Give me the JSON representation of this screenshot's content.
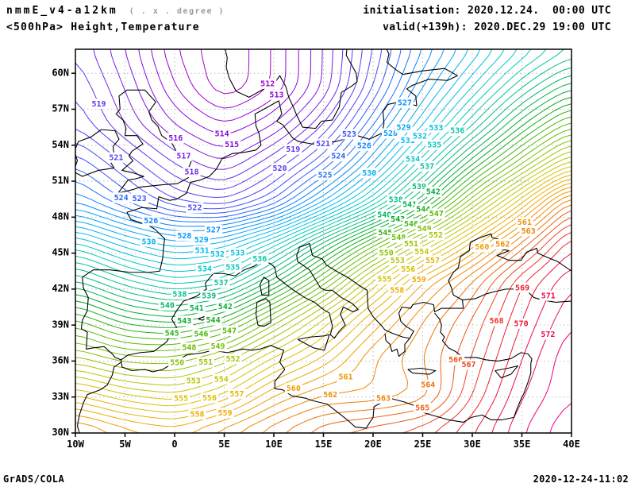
{
  "header": {
    "model": "nmmE_v4-a12km",
    "resolution_note": "( . x . degree )",
    "field_line": "<500hPa> Height,Temperature",
    "init_line": "initialisation: 2020.12.24.  00:00 UTC",
    "valid_line": "valid(+139h): 2020.DEC.29 19:00 UTC"
  },
  "footer": {
    "left": "GrADS/COLA",
    "right": "2020-12-24-11:02"
  },
  "chart_data": {
    "type": "heatmap",
    "subtype": "contour-isolines-over-map",
    "title": "<500hPa> Height,Temperature",
    "xlabel": "",
    "ylabel": "",
    "legend": "none",
    "grid_lines": "dotted",
    "lon_range": [
      -10,
      40
    ],
    "lat_range": [
      30,
      62
    ],
    "x_ticks": {
      "labels": [
        "10W",
        "5W",
        "0",
        "5E",
        "10E",
        "15E",
        "20E",
        "25E",
        "30E",
        "35E",
        "40E"
      ],
      "values": [
        -10,
        -5,
        0,
        5,
        10,
        15,
        20,
        25,
        30,
        35,
        40
      ]
    },
    "y_ticks": {
      "labels": [
        "30N",
        "33N",
        "36N",
        "39N",
        "42N",
        "45N",
        "48N",
        "51N",
        "54N",
        "57N",
        "60N"
      ],
      "values": [
        30,
        33,
        36,
        39,
        42,
        45,
        48,
        51,
        54,
        57,
        60
      ]
    },
    "contour_levels": {
      "min": 510,
      "max": 575,
      "interval": 1
    },
    "field_description": "500hPa geopotential height (dam): closed low ~510 over Norway/North Sea, ridge ~575 over SE corner (Middle East), weak cut-off low ~562 over Libya/Egypt",
    "grid": {
      "lats": [
        62,
        58.8,
        55.6,
        52.4,
        49.2,
        46,
        42.8,
        39.6,
        36.4,
        33.2,
        30
      ],
      "lons": [
        -10,
        -5,
        0,
        5,
        10,
        15,
        20,
        25,
        30,
        35,
        40
      ],
      "values": [
        [
          519,
          516,
          512,
          510,
          512,
          516,
          521,
          526,
          530,
          534,
          537
        ],
        [
          520,
          517,
          513,
          510,
          512,
          516,
          522,
          528,
          533,
          538,
          542
        ],
        [
          521,
          518,
          515,
          513,
          515,
          519,
          525,
          531,
          537,
          543,
          548
        ],
        [
          524,
          521,
          518,
          516,
          519,
          523,
          529,
          536,
          543,
          549,
          555
        ],
        [
          527,
          524,
          521,
          520,
          523,
          529,
          535,
          542,
          550,
          557,
          565
        ],
        [
          534,
          531,
          529,
          530,
          534,
          540,
          546,
          552,
          558,
          564,
          570
        ],
        [
          540,
          537,
          535,
          536,
          541,
          547,
          554,
          560,
          564,
          569,
          572
        ],
        [
          546,
          543,
          542,
          544,
          549,
          554,
          559,
          563,
          566,
          570,
          573
        ],
        [
          551,
          549,
          549,
          551,
          555,
          558,
          562,
          564,
          567,
          571,
          574
        ],
        [
          557,
          555,
          554,
          556,
          560,
          562,
          562,
          563,
          568,
          572,
          574
        ],
        [
          563,
          561,
          560,
          562,
          564,
          566,
          567,
          568,
          570,
          573,
          575
        ]
      ]
    },
    "colormap_stops": [
      [
        509,
        "#bb00bb"
      ],
      [
        514,
        "#8f00e0"
      ],
      [
        519,
        "#6a30f0"
      ],
      [
        523,
        "#3355ff"
      ],
      [
        527,
        "#0090ff"
      ],
      [
        531,
        "#00bbee"
      ],
      [
        535,
        "#00ccbb"
      ],
      [
        539,
        "#00bb77"
      ],
      [
        543,
        "#00aa22"
      ],
      [
        547,
        "#55bb00"
      ],
      [
        551,
        "#99c400"
      ],
      [
        555,
        "#d4c400"
      ],
      [
        559,
        "#f0a800"
      ],
      [
        563,
        "#f08000"
      ],
      [
        567,
        "#ee4422"
      ],
      [
        570,
        "#ee1133"
      ],
      [
        573,
        "#ee0077"
      ],
      [
        576,
        "#ff00bb"
      ]
    ]
  }
}
